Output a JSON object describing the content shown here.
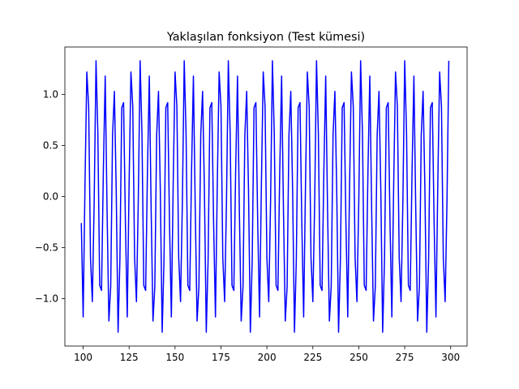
{
  "chart_data": {
    "type": "line",
    "title": "Yaklaşılan fonksiyon (Test kümesi)",
    "xlabel": "",
    "ylabel": "",
    "xlim": [
      90.05,
      308.95
    ],
    "ylim": [
      -1.465,
      1.465
    ],
    "grid": false,
    "legend": "none",
    "x_ticks": [
      100,
      125,
      150,
      175,
      200,
      225,
      250,
      275,
      300
    ],
    "x_tick_labels": [
      "100",
      "125",
      "150",
      "175",
      "200",
      "225",
      "250",
      "275",
      "300"
    ],
    "y_ticks": [
      -1.0,
      -0.5,
      0.0,
      0.5,
      1.0
    ],
    "y_tick_labels": [
      "−1.0",
      "−0.5",
      "0.0",
      "0.5",
      "1.0"
    ],
    "series": [
      {
        "color": "#0000ff",
        "x": [
          99,
          100,
          101,
          102,
          103,
          104,
          105,
          106,
          107,
          108,
          109,
          110,
          111,
          112,
          113,
          114,
          115,
          116,
          117,
          118,
          119,
          120,
          121,
          122,
          123,
          124,
          125,
          126,
          127,
          128,
          129,
          130,
          131,
          132,
          133,
          134,
          135,
          136,
          137,
          138,
          139,
          140,
          141,
          142,
          143,
          144,
          145,
          146,
          147,
          148,
          149,
          150,
          151,
          152,
          153,
          154,
          155,
          156,
          157,
          158,
          159,
          160,
          161,
          162,
          163,
          164,
          165,
          166,
          167,
          168,
          169,
          170,
          171,
          172,
          173,
          174,
          175,
          176,
          177,
          178,
          179,
          180,
          181,
          182,
          183,
          184,
          185,
          186,
          187,
          188,
          189,
          190,
          191,
          192,
          193,
          194,
          195,
          196,
          197,
          198,
          199,
          200,
          201,
          202,
          203,
          204,
          205,
          206,
          207,
          208,
          209,
          210,
          211,
          212,
          213,
          214,
          215,
          216,
          217,
          218,
          219,
          220,
          221,
          222,
          223,
          224,
          225,
          226,
          227,
          228,
          229,
          230,
          231,
          232,
          233,
          234,
          235,
          236,
          237,
          238,
          239,
          240,
          241,
          242,
          243,
          244,
          245,
          246,
          247,
          248,
          249,
          250,
          251,
          252,
          253,
          254,
          255,
          256,
          257,
          258,
          259,
          260,
          261,
          262,
          263,
          264,
          265,
          266,
          267,
          268,
          269,
          270,
          271,
          272,
          273,
          274,
          275,
          276,
          277,
          278,
          279,
          280,
          281,
          282,
          283,
          284,
          285,
          286,
          287,
          288,
          289,
          290,
          291,
          292,
          293,
          294,
          295,
          296,
          297,
          298,
          299
        ],
        "y": [
          -0.26,
          -1.18,
          0.12,
          1.22,
          0.88,
          -0.6,
          -1.03,
          -0.05,
          1.33,
          0.62,
          -0.87,
          -0.92,
          0.26,
          1.18,
          -0.12,
          -1.22,
          -0.88,
          0.6,
          1.03,
          0.05,
          -1.33,
          -0.62,
          0.87,
          0.92,
          -0.26,
          -1.18,
          0.12,
          1.22,
          0.88,
          -0.6,
          -1.03,
          -0.05,
          1.33,
          0.62,
          -0.87,
          -0.92,
          0.26,
          1.18,
          -0.12,
          -1.22,
          -0.88,
          0.6,
          1.03,
          0.05,
          -1.33,
          -0.62,
          0.87,
          0.92,
          -0.26,
          -1.18,
          0.12,
          1.22,
          0.88,
          -0.6,
          -1.03,
          -0.05,
          1.33,
          0.62,
          -0.87,
          -0.92,
          0.26,
          1.18,
          -0.12,
          -1.22,
          -0.88,
          0.6,
          1.03,
          0.05,
          -1.33,
          -0.62,
          0.87,
          0.92,
          -0.26,
          -1.18,
          0.12,
          1.22,
          0.88,
          -0.6,
          -1.03,
          -0.05,
          1.33,
          0.62,
          -0.87,
          -0.92,
          0.26,
          1.18,
          -0.12,
          -1.22,
          -0.88,
          0.6,
          1.03,
          0.05,
          -1.33,
          -0.62,
          0.87,
          0.92,
          -0.26,
          -1.18,
          0.12,
          1.22,
          0.88,
          -0.6,
          -1.03,
          -0.05,
          1.33,
          0.62,
          -0.87,
          -0.92,
          0.26,
          1.18,
          -0.12,
          -1.22,
          -0.88,
          0.6,
          1.03,
          0.05,
          -1.33,
          -0.62,
          0.87,
          0.92,
          -0.26,
          -1.18,
          0.12,
          1.22,
          0.88,
          -0.6,
          -1.03,
          -0.05,
          1.33,
          0.62,
          -0.87,
          -0.92,
          0.26,
          1.18,
          -0.12,
          -1.22,
          -0.88,
          0.6,
          1.03,
          0.05,
          -1.33,
          -0.62,
          0.87,
          0.92,
          -0.26,
          -1.18,
          0.12,
          1.22,
          0.88,
          -0.6,
          -1.03,
          -0.05,
          1.33,
          0.62,
          -0.87,
          -0.92,
          0.26,
          1.18,
          -0.12,
          -1.22,
          -0.88,
          0.6,
          1.03,
          0.05,
          -1.33,
          -0.62,
          0.87,
          0.92,
          -0.26,
          -1.18,
          0.12,
          1.22,
          0.88,
          -0.6,
          -1.03,
          -0.05,
          1.33,
          0.62,
          -0.87,
          -0.92,
          0.26,
          1.18,
          -0.12,
          -1.22,
          -0.88,
          0.6,
          1.03,
          0.05,
          -1.33,
          -0.62,
          0.87,
          0.92,
          -0.26,
          -1.18,
          0.12,
          1.22,
          0.88,
          -0.6,
          -1.03,
          -0.05,
          1.33
        ]
      }
    ]
  }
}
